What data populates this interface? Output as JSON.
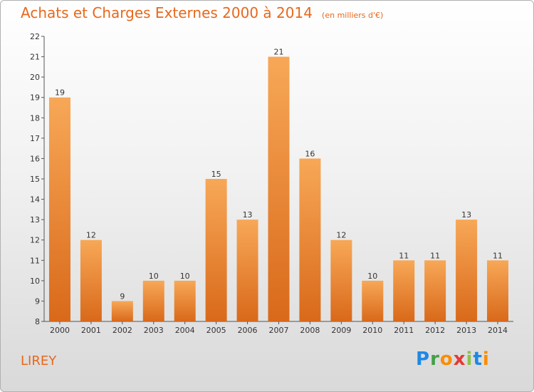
{
  "title": "Achats et Charges Externes 2000 à 2014",
  "subtitle": "(en milliers d'€)",
  "commune": "LIREY",
  "brand": {
    "name": "Proxiti",
    "letters": [
      "P",
      "r",
      "o",
      "x",
      "i",
      "t",
      "i"
    ],
    "colors": [
      "#1e88e5",
      "#43a047",
      "#fb8c00",
      "#e53935",
      "#8bc34a",
      "#1e88e5",
      "#fb8c00"
    ]
  },
  "colors": {
    "bar_top": "#f7a857",
    "bar_bottom": "#d9691a",
    "accent": "#e8671c",
    "axis": "#555555"
  },
  "chart_data": {
    "type": "bar",
    "categories": [
      "2000",
      "2001",
      "2002",
      "2003",
      "2004",
      "2005",
      "2006",
      "2007",
      "2008",
      "2009",
      "2010",
      "2011",
      "2012",
      "2013",
      "2014"
    ],
    "values": [
      19,
      12,
      9,
      10,
      10,
      15,
      13,
      21,
      16,
      12,
      10,
      11,
      11,
      13,
      11
    ],
    "title": "Achats et Charges Externes 2000 à 2014",
    "subtitle": "(en milliers d'€)",
    "xlabel": "",
    "ylabel": "",
    "ylim": [
      8,
      22
    ],
    "yticks": [
      8,
      9,
      10,
      11,
      12,
      13,
      14,
      15,
      16,
      17,
      18,
      19,
      20,
      21,
      22
    ],
    "grid": false,
    "data_labels": true
  }
}
